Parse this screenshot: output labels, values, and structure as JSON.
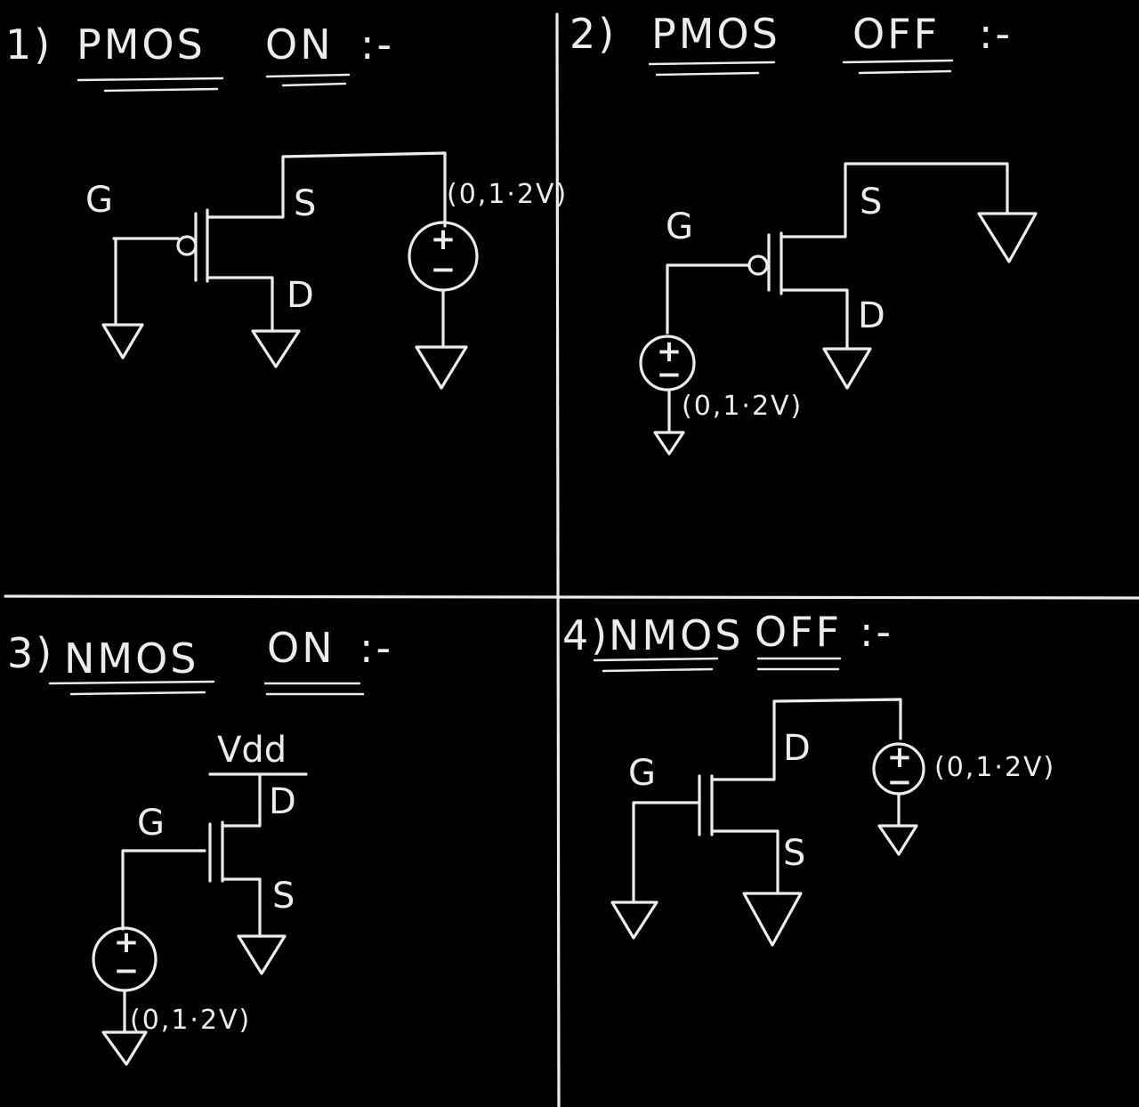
{
  "colors": {
    "background": "#000000",
    "chalk": "#ececec"
  },
  "panels": [
    {
      "title_num": "1)",
      "title_dev": "PMOS",
      "title_state": "ON",
      "title_suffix": ":-",
      "gate": "G",
      "source": "S",
      "drain": "D",
      "supply_value": "(0,1·2V)",
      "plus": "+",
      "minus": "−"
    },
    {
      "title_num": "2)",
      "title_dev": "PMOS",
      "title_state": "OFF",
      "title_suffix": ":-",
      "gate": "G",
      "source": "S",
      "drain": "D",
      "supply_value": "(0,1·2V)",
      "plus": "+",
      "minus": "−"
    },
    {
      "title_num": "3)",
      "title_dev": "NMOS",
      "title_state": "ON",
      "title_suffix": ":-",
      "rail": "Vdd",
      "gate": "G",
      "source": "S",
      "drain": "D",
      "supply_value": "(0,1·2V)",
      "plus": "+",
      "minus": "−"
    },
    {
      "title_num": "4)",
      "title_dev": "NMOS",
      "title_state": "OFF",
      "title_suffix": ":-",
      "gate": "G",
      "source": "S",
      "drain": "D",
      "supply_value": "(0,1·2V)",
      "plus": "+",
      "minus": "−"
    }
  ]
}
